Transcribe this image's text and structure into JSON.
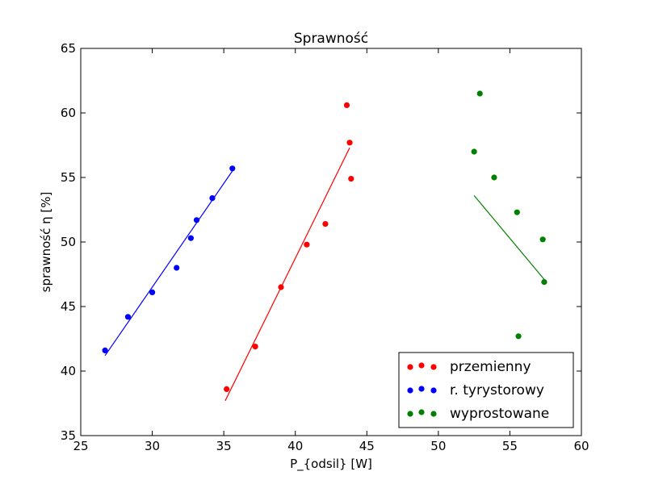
{
  "chart_data": {
    "type": "scatter",
    "title": "Sprawność",
    "xlabel": "P_{odsil} [W]",
    "ylabel": "sprawność η [%]",
    "xlim": [
      25,
      60
    ],
    "ylim": [
      35,
      65
    ],
    "xticks": [
      25,
      30,
      35,
      40,
      45,
      50,
      55,
      60
    ],
    "yticks": [
      35,
      40,
      45,
      50,
      55,
      60,
      65
    ],
    "grid": false,
    "legend_position": "lower-right",
    "series": [
      {
        "name": "przemienny",
        "color": "#ff0000",
        "points": [
          [
            35.2,
            38.6
          ],
          [
            37.2,
            41.9
          ],
          [
            39.0,
            46.5
          ],
          [
            40.8,
            49.8
          ],
          [
            42.1,
            51.4
          ],
          [
            43.6,
            60.6
          ],
          [
            43.8,
            57.7
          ],
          [
            43.9,
            54.9
          ]
        ],
        "fit": [
          [
            35.1,
            37.7
          ],
          [
            43.8,
            57.3
          ]
        ]
      },
      {
        "name": "r. tyrystorowy",
        "color": "#0000ff",
        "points": [
          [
            26.7,
            41.6
          ],
          [
            28.3,
            44.2
          ],
          [
            30.0,
            46.1
          ],
          [
            31.7,
            48.0
          ],
          [
            32.7,
            50.3
          ],
          [
            33.1,
            51.7
          ],
          [
            34.2,
            53.4
          ],
          [
            35.6,
            55.7
          ]
        ],
        "fit": [
          [
            26.7,
            41.2
          ],
          [
            35.6,
            55.5
          ]
        ]
      },
      {
        "name": "wyprostowane",
        "color": "#008000",
        "points": [
          [
            52.5,
            57.0
          ],
          [
            52.9,
            61.5
          ],
          [
            53.9,
            55.0
          ],
          [
            55.5,
            52.3
          ],
          [
            55.6,
            42.7
          ],
          [
            57.3,
            50.2
          ],
          [
            57.4,
            46.9
          ]
        ],
        "fit": [
          [
            52.5,
            53.6
          ],
          [
            57.4,
            47.1
          ]
        ]
      }
    ]
  }
}
